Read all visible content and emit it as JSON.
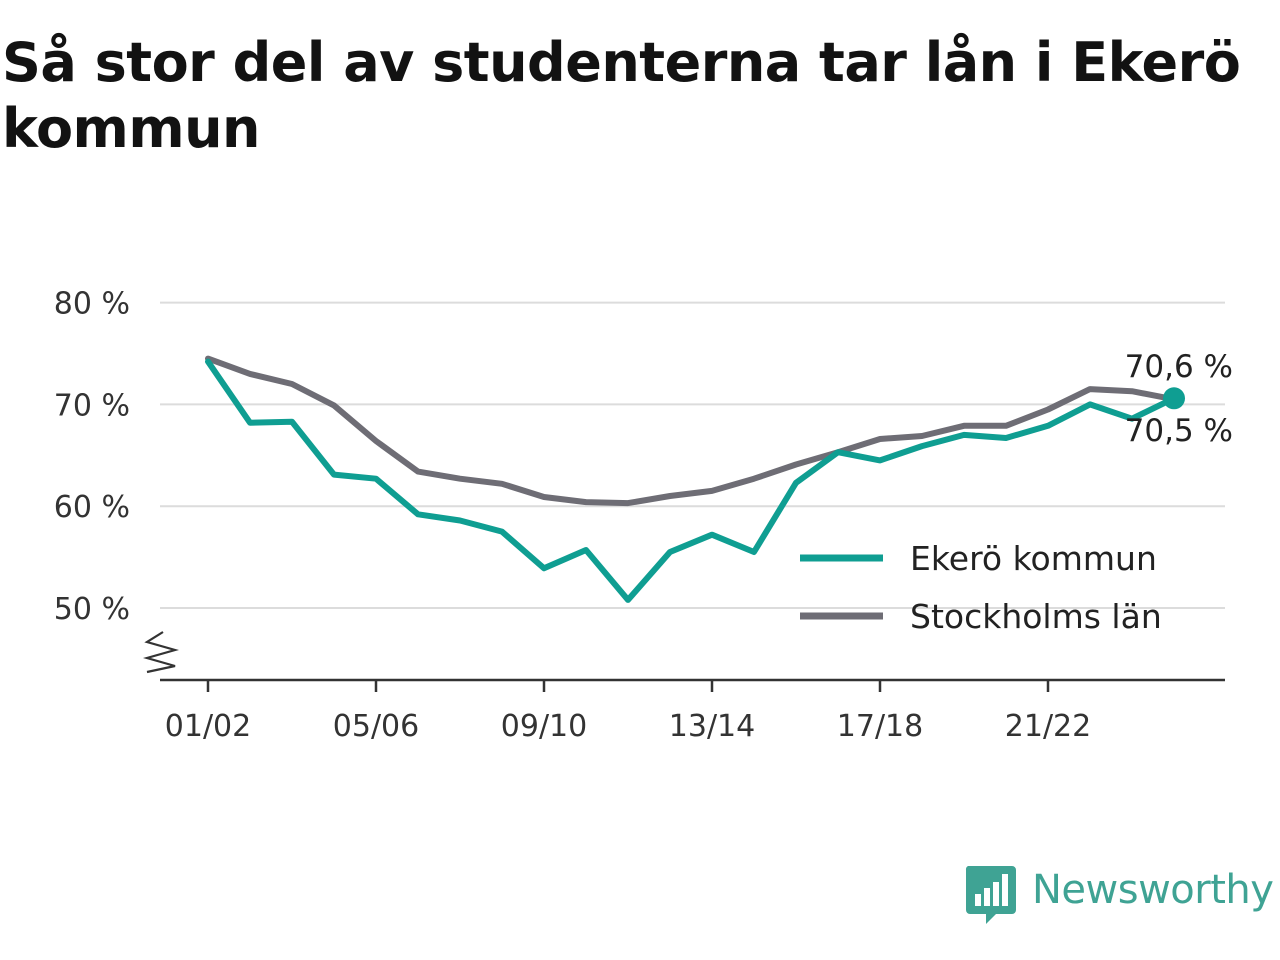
{
  "title": "Så stor del av studenterna tar lån i Ekerö kommun",
  "brand": {
    "name": "Newsworthy",
    "icon": "newsworthy-logo-icon",
    "color": "#3fa394"
  },
  "chart_data": {
    "type": "line",
    "title": "Så stor del av studenterna tar lån i Ekerö kommun",
    "xlabel": "",
    "ylabel": "",
    "ylim": [
      43,
      80
    ],
    "y_ticks": [
      50,
      60,
      70,
      80
    ],
    "y_tick_labels": [
      "50 %",
      "60 %",
      "70 %",
      "80 %"
    ],
    "axis_break": true,
    "x_tick_labels": [
      "01/02",
      "05/06",
      "09/10",
      "13/14",
      "17/18",
      "21/22"
    ],
    "x_tick_index": [
      0,
      4,
      8,
      12,
      16,
      20
    ],
    "grid": true,
    "legend_position": "bottom-right",
    "series": [
      {
        "name": "Ekerö kommun",
        "color": "#0f9e92",
        "values": [
          74.2,
          68.2,
          68.3,
          63.1,
          62.7,
          59.2,
          58.6,
          57.5,
          53.9,
          55.7,
          50.8,
          55.5,
          57.2,
          55.5,
          62.3,
          65.3,
          64.5,
          65.9,
          67.0,
          66.7,
          67.9,
          70.0,
          68.6,
          70.6
        ]
      },
      {
        "name": "Stockholms län",
        "color": "#6e6d75",
        "values": [
          74.5,
          73.0,
          72.0,
          69.9,
          66.4,
          63.4,
          62.7,
          62.2,
          60.9,
          60.4,
          60.3,
          61.0,
          61.5,
          62.7,
          64.1,
          65.3,
          66.6,
          66.9,
          67.9,
          67.9,
          69.5,
          71.5,
          71.3,
          70.5
        ]
      }
    ],
    "end_labels": {
      "top": "70,6 %",
      "bottom": "70,5 %"
    }
  }
}
